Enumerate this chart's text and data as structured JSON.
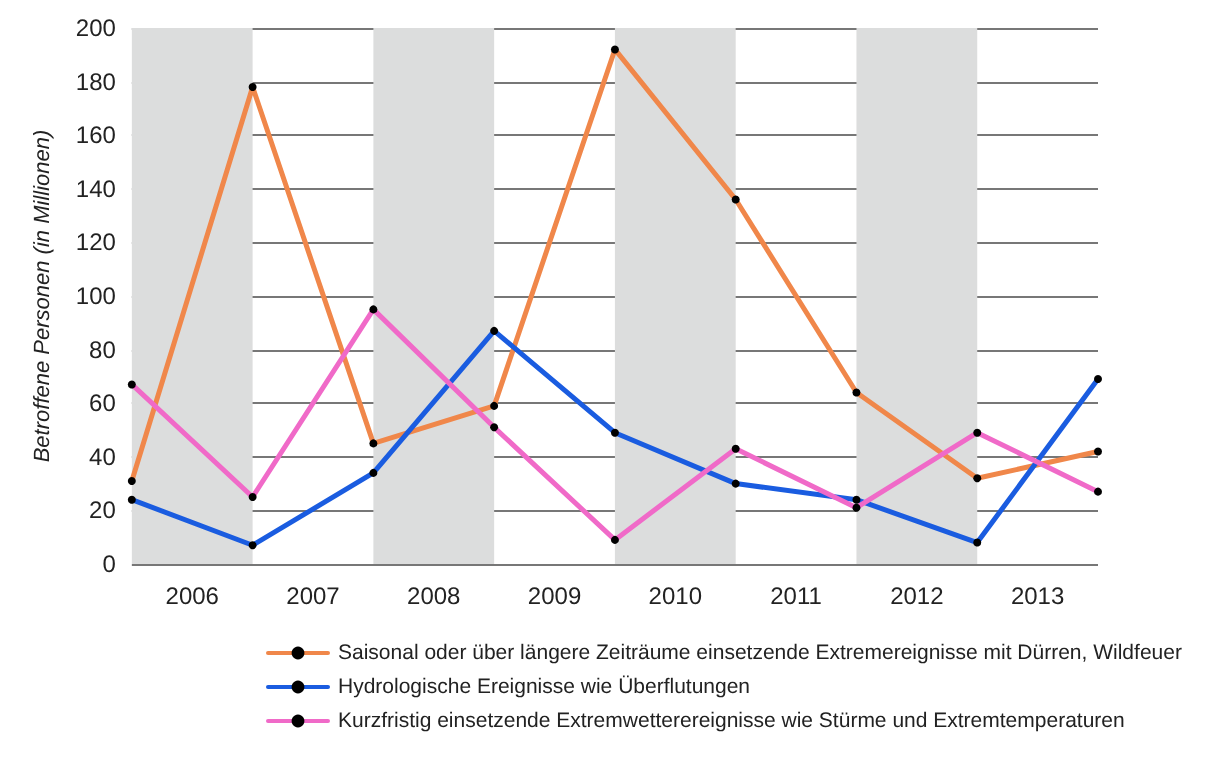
{
  "chart_data": {
    "type": "line",
    "ylabel": "Betroffene Personen (in Millionen)",
    "x": [
      2006,
      2007,
      2008,
      2009,
      2010,
      2011,
      2012,
      2013,
      2014
    ],
    "xlim": [
      2006,
      2014
    ],
    "xticks": [
      {
        "value": 2006.5,
        "label": "2006"
      },
      {
        "value": 2007.5,
        "label": "2007"
      },
      {
        "value": 2008.5,
        "label": "2008"
      },
      {
        "value": 2009.5,
        "label": "2009"
      },
      {
        "value": 2010.5,
        "label": "2010"
      },
      {
        "value": 2011.5,
        "label": "2011"
      },
      {
        "value": 2012.5,
        "label": "2012"
      },
      {
        "value": 2013.5,
        "label": "2013"
      }
    ],
    "ylim": [
      0,
      200
    ],
    "yticks": [
      0,
      20,
      40,
      60,
      80,
      100,
      120,
      140,
      160,
      180,
      200
    ],
    "grid": "y",
    "legend": "bottom",
    "marker": "circle",
    "line_style": "solid",
    "bands": [
      {
        "axis": "x",
        "from": 2006,
        "to": 2007,
        "color": "#dcdddd"
      },
      {
        "axis": "x",
        "from": 2008,
        "to": 2009,
        "color": "#dcdddd"
      },
      {
        "axis": "x",
        "from": 2010,
        "to": 2011,
        "color": "#dcdddd"
      },
      {
        "axis": "x",
        "from": 2012,
        "to": 2013,
        "color": "#dcdddd"
      }
    ],
    "series": [
      {
        "name": "Saisonal oder über längere Zeiträume einsetzende Extremereignisse mit Dürren, Wildfeuer",
        "color": "#f0874a",
        "values": [
          31,
          178,
          45,
          59,
          192,
          136,
          64,
          32,
          42
        ]
      },
      {
        "name": "Hydrologische Ereignisse wie Überflutungen",
        "color": "#1a5ce0",
        "values": [
          24,
          7,
          34,
          87,
          49,
          30,
          24,
          8,
          69
        ]
      },
      {
        "name": "Kurzfristig einsetzende Extremwetterereignisse wie Stürme und Extremtemperaturen",
        "color": "#f06ac8",
        "values": [
          67,
          25,
          95,
          51,
          9,
          43,
          21,
          49,
          27
        ]
      }
    ]
  }
}
